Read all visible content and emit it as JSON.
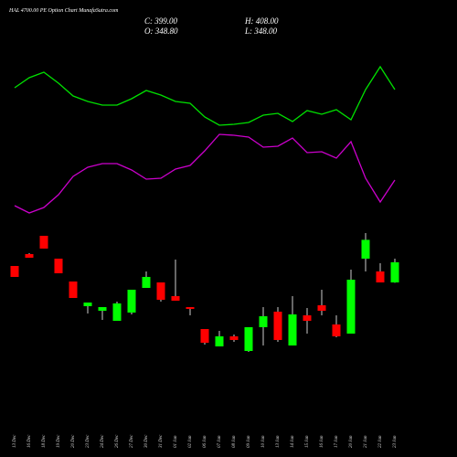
{
  "chart_data": {
    "type": "candlestick",
    "title": "HAL 4700.00 PE Option Chart MunafaSutra.com",
    "ohlc_labels": {
      "close": "C: 399.00",
      "high": "H: 408.00",
      "open": "O: 348.80",
      "low": "L: 348.00"
    },
    "categories": [
      "13 Dec",
      "16 Dec",
      "18 Dec",
      "19 Dec",
      "20 Dec",
      "23 Dec",
      "24 Dec",
      "26 Dec",
      "27 Dec",
      "30 Dec",
      "31 Dec",
      "01 Jan",
      "02 Jan",
      "06 Jan",
      "07 Jan",
      "08 Jan",
      "09 Jan",
      "10 Jan",
      "13 Jan",
      "14 Jan",
      "15 Jan",
      "16 Jan",
      "17 Jan",
      "20 Jan",
      "21 Jan",
      "22 Jan",
      "23 Jan"
    ],
    "open": [
      389.8,
      419.5,
      465.1,
      408.1,
      351.1,
      289.5,
      278.1,
      253.0,
      273.6,
      335.1,
      348.8,
      314.6,
      287.2,
      232.5,
      189.2,
      214.3,
      177.8,
      237.1,
      275.8,
      191.5,
      266.7,
      291.8,
      243.9,
      221.1,
      408.1,
      376.2,
      348.8
    ],
    "high": [
      389.8,
      421.8,
      465.1,
      408.1,
      351.1,
      298.6,
      287.2,
      300.9,
      330.6,
      376.2,
      348.8,
      405.8,
      287.2,
      232.5,
      228.0,
      218.8,
      237.1,
      287.2,
      287.2,
      314.6,
      285.0,
      330.6,
      266.7,
      380.7,
      471.9,
      396.7,
      408
    ],
    "low": [
      362.5,
      410.4,
      433.2,
      371.6,
      310.0,
      271.3,
      255.3,
      253.0,
      269.0,
      335.1,
      300.9,
      303.2,
      266.7,
      193.8,
      189.2,
      200.6,
      175.5,
      191.5,
      200.6,
      191.5,
      221.1,
      266.7,
      212.0,
      221.1,
      376.2,
      348.8,
      348
    ],
    "close": [
      362.5,
      410.4,
      433.2,
      371.6,
      310.0,
      298.6,
      287.2,
      296.4,
      330.6,
      362.5,
      305.5,
      303.2,
      282.7,
      198.3,
      214.3,
      205.2,
      237.1,
      264.4,
      205.2,
      269.0,
      253.0,
      278.1,
      214.3,
      355.6,
      455.0,
      348.8,
      399
    ],
    "up_color": "#00ff00",
    "down_color": "#ff0000",
    "wick_color": "#cccccc",
    "series": [
      {
        "color": "#00e000",
        "values": [
          154,
          165,
          171,
          159,
          145,
          139,
          135,
          135,
          142,
          151,
          146,
          139,
          137,
          122,
          113,
          114,
          116,
          124,
          126,
          117,
          129,
          125,
          130,
          119,
          152,
          177,
          152
        ]
      },
      {
        "color": "#cc00cc",
        "values": [
          25,
          17,
          23,
          37,
          57,
          67,
          71,
          71,
          64,
          54,
          55,
          65,
          69,
          85,
          103,
          102,
          100,
          89,
          90,
          99,
          83,
          84,
          77,
          95,
          55,
          29,
          53
        ]
      }
    ]
  }
}
